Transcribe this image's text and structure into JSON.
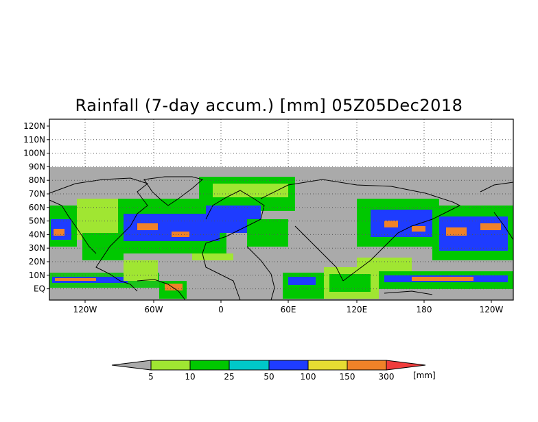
{
  "map": {
    "title": "Rainfall (7-day accum.) [mm] 05Z05Dec2018",
    "lat_labels": [
      "120N",
      "110N",
      "100N",
      "90N",
      "80N",
      "70N",
      "60N",
      "50N",
      "40N",
      "30N",
      "20N",
      "10N",
      "EQ"
    ],
    "lon_labels": [
      "120W",
      "60W",
      "0",
      "60E",
      "120E",
      "180",
      "120W"
    ],
    "no_data_color": "#aaaaaa"
  },
  "colorbar": {
    "ticks": [
      "5",
      "10",
      "25",
      "50",
      "100",
      "150",
      "300"
    ],
    "unit": "[mm]",
    "colors": [
      "#aaaaaa",
      "#a0e632",
      "#00c800",
      "#00c8c8",
      "#1e3cff",
      "#e6dc32",
      "#f08228",
      "#f03c3c"
    ]
  }
}
